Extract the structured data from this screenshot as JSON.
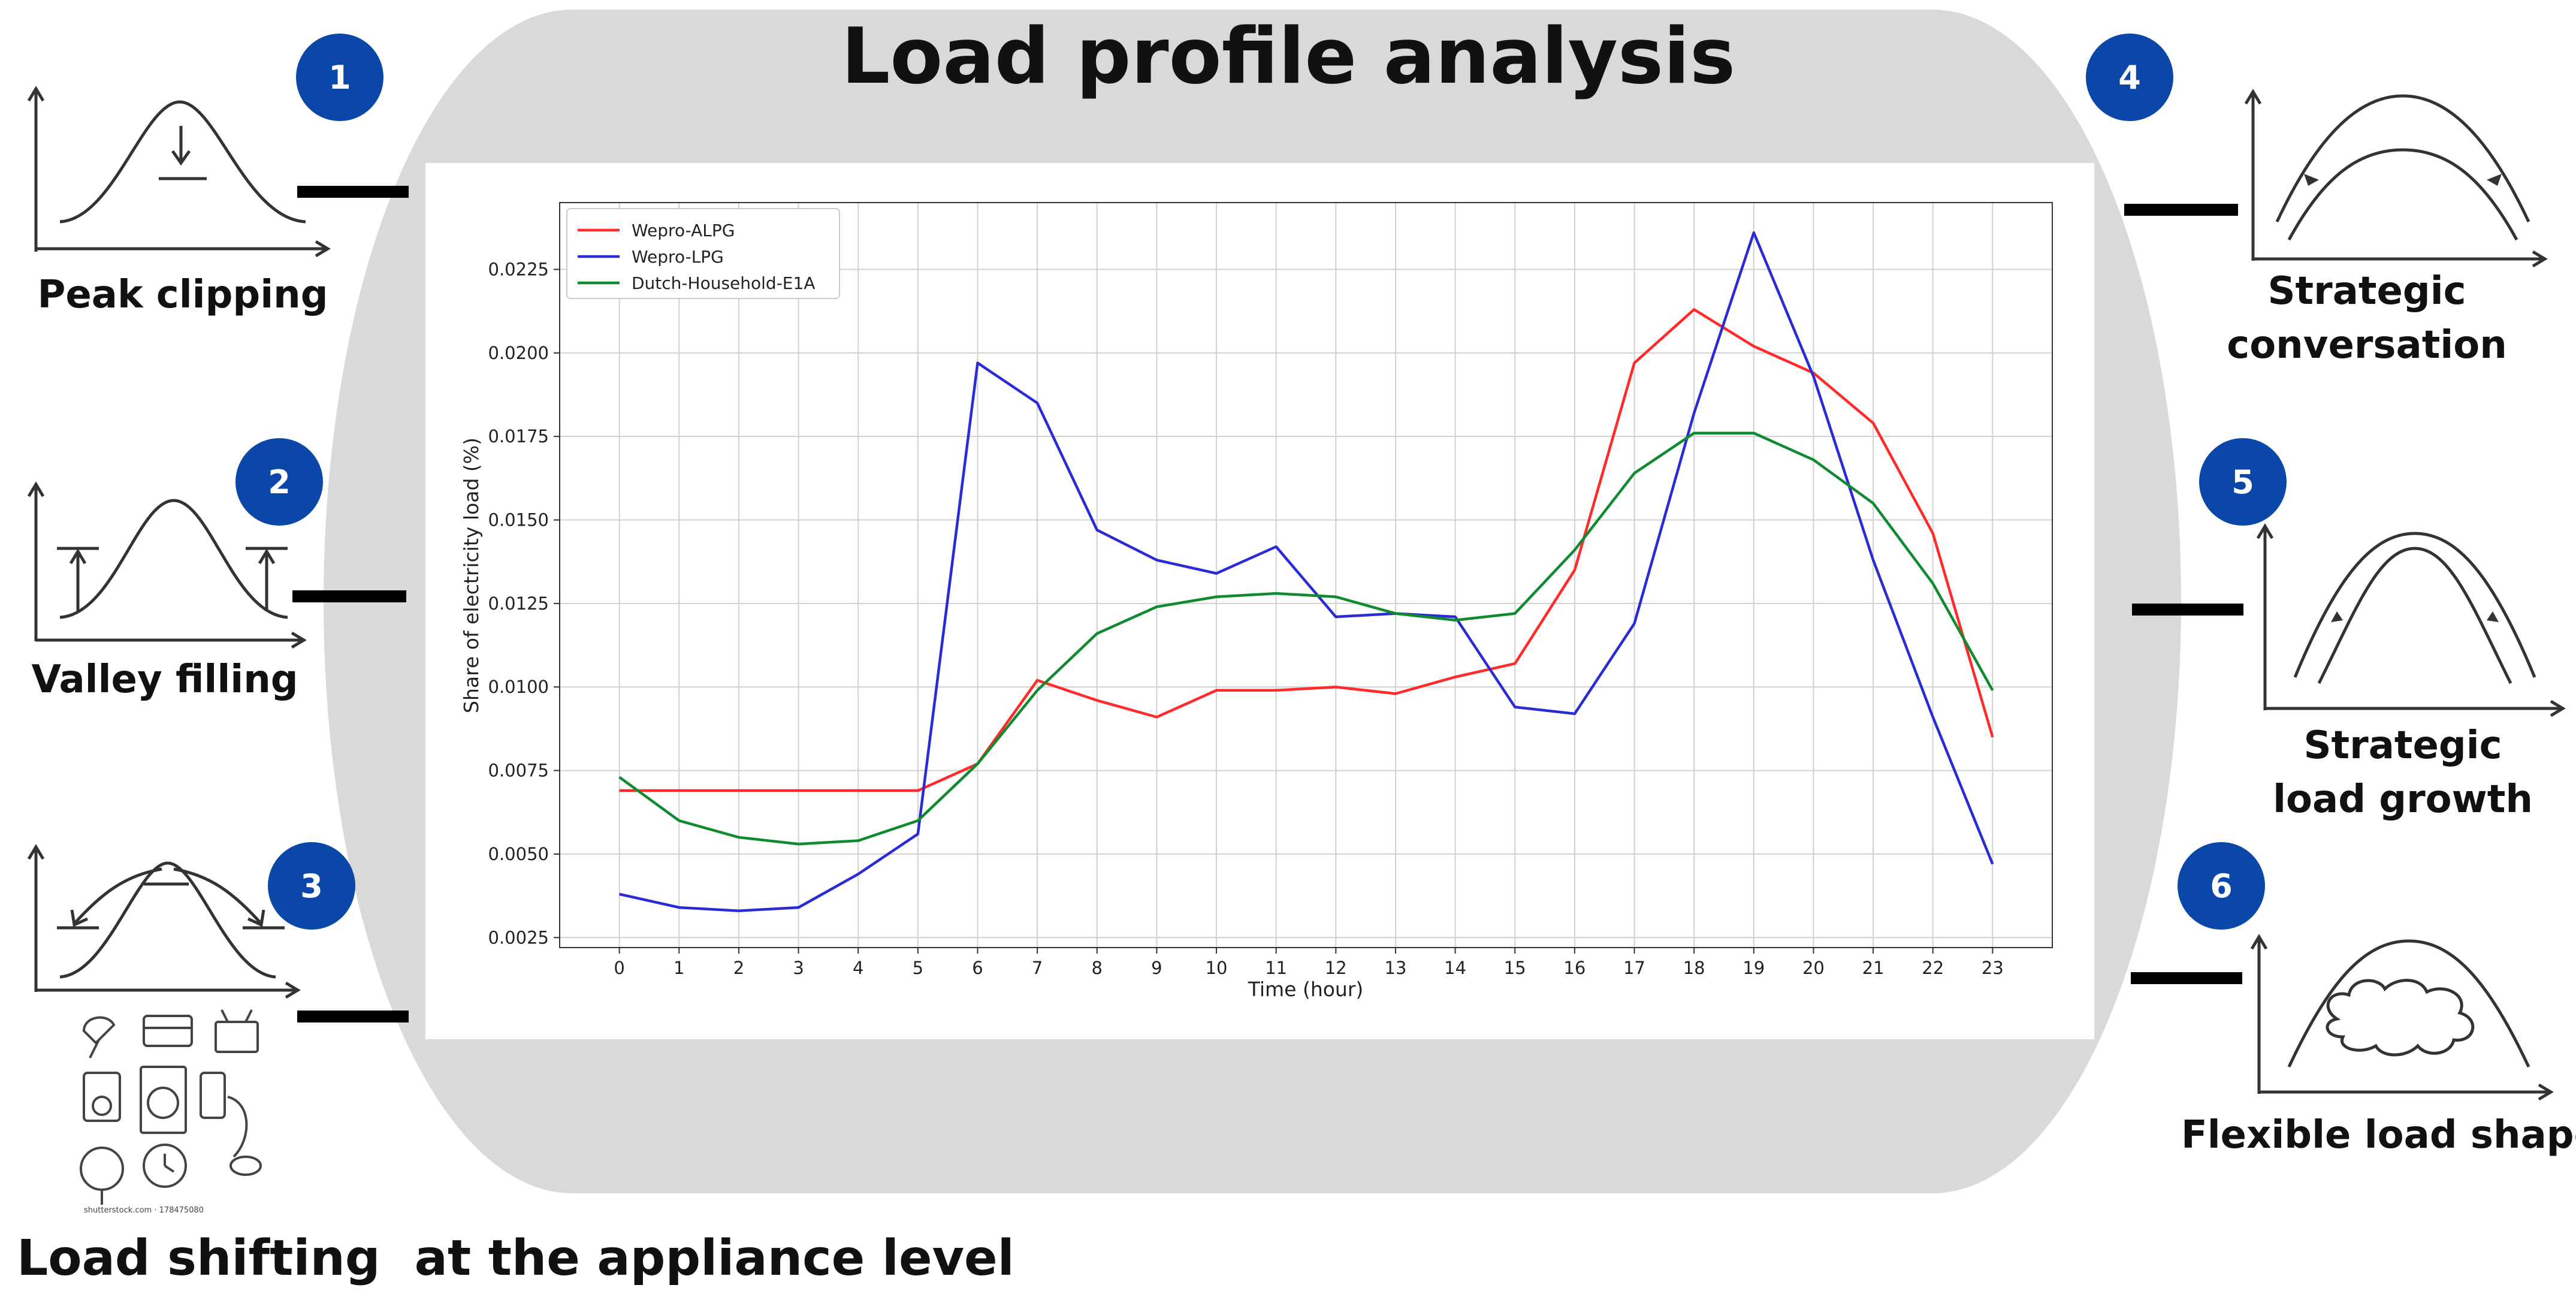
{
  "title": "Load profile analysis",
  "strategies": [
    {
      "number": "1",
      "label": "Peak clipping"
    },
    {
      "number": "2",
      "label": "Valley filling"
    },
    {
      "number": "3",
      "label": "Load shifting  at the appliance level"
    },
    {
      "number": "4",
      "label_line1": "Strategic",
      "label_line2": "conversation"
    },
    {
      "number": "5",
      "label_line1": "Strategic",
      "label_line2": "load growth"
    },
    {
      "number": "6",
      "label": "Flexible load shape"
    }
  ],
  "watermark": "shutterstock.com · 178475080",
  "colors": {
    "badge": "#0a47a9",
    "background_blob": "#d9d9d9"
  },
  "chart_data": {
    "type": "line",
    "title": "",
    "xlabel": "Time (hour)",
    "ylabel": "Share of electricity load (%)",
    "x": [
      0,
      1,
      2,
      3,
      4,
      5,
      6,
      7,
      8,
      9,
      10,
      11,
      12,
      13,
      14,
      15,
      16,
      17,
      18,
      19,
      20,
      21,
      22,
      23
    ],
    "xlim": [
      -1.0,
      24.0
    ],
    "ylim": [
      0.0022,
      0.0245
    ],
    "yticks": [
      0.0025,
      0.005,
      0.0075,
      0.01,
      0.0125,
      0.015,
      0.0175,
      0.02,
      0.0225
    ],
    "ytick_labels": [
      "0.0025",
      "0.0050",
      "0.0075",
      "0.0100",
      "0.0125",
      "0.0150",
      "0.0175",
      "0.0200",
      "0.0225"
    ],
    "grid": true,
    "legend": "top-left",
    "series": [
      {
        "name": "Wepro-ALPG",
        "color": "#ff2a2a",
        "values": [
          0.0069,
          0.0069,
          0.0069,
          0.0069,
          0.0069,
          0.0069,
          0.0077,
          0.0102,
          0.0096,
          0.0091,
          0.0099,
          0.0099,
          0.01,
          0.0098,
          0.0103,
          0.0107,
          0.0135,
          0.0197,
          0.0213,
          0.0202,
          0.0194,
          0.0179,
          0.0146,
          0.0085
        ]
      },
      {
        "name": "Wepro-LPG",
        "color": "#2b2bd6",
        "values": [
          0.0038,
          0.0034,
          0.0033,
          0.0034,
          0.0044,
          0.0056,
          0.0197,
          0.0185,
          0.0147,
          0.0138,
          0.0134,
          0.0142,
          0.0121,
          0.0122,
          0.0121,
          0.0094,
          0.0092,
          0.0119,
          0.0182,
          0.0236,
          0.0193,
          0.0138,
          0.0091,
          0.0047
        ]
      },
      {
        "name": "Dutch-Household-E1A",
        "color": "#0f8a2e",
        "values": [
          0.0073,
          0.006,
          0.0055,
          0.0053,
          0.0054,
          0.006,
          0.0077,
          0.0099,
          0.0116,
          0.0124,
          0.0127,
          0.0128,
          0.0127,
          0.0122,
          0.012,
          0.0122,
          0.0141,
          0.0164,
          0.0176,
          0.0176,
          0.0168,
          0.0155,
          0.0131,
          0.0099
        ]
      }
    ]
  }
}
